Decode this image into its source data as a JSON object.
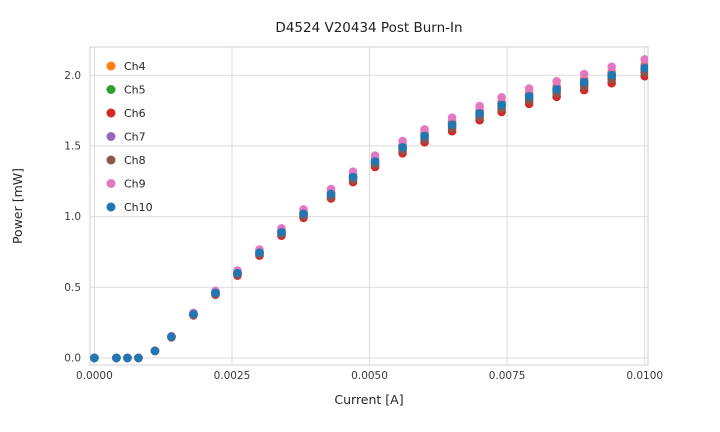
{
  "chart_data": {
    "type": "scatter",
    "title": "D4524 V20434 Post Burn-In",
    "xlabel": "Current [A]",
    "ylabel": "Power [mW]",
    "xlim": [
      -8e-05,
      0.01006
    ],
    "ylim": [
      -0.05,
      2.2
    ],
    "grid": true,
    "legend_position": "upper-left",
    "xticks": {
      "values": [
        0.0,
        0.0025,
        0.005,
        0.0075,
        0.01
      ],
      "labels": [
        "0.0000",
        "0.0025",
        "0.0050",
        "0.0075",
        "0.0100"
      ]
    },
    "yticks": {
      "values": [
        0.0,
        0.5,
        1.0,
        1.5,
        2.0
      ],
      "labels": [
        "0.0",
        "0.5",
        "1.0",
        "1.5",
        "2.0"
      ]
    },
    "x": [
      0.0,
      0.0004,
      0.0006,
      0.0008,
      0.0011,
      0.0014,
      0.0018,
      0.0022,
      0.0026,
      0.003,
      0.0034,
      0.0038,
      0.0043,
      0.0047,
      0.0051,
      0.0056,
      0.006,
      0.0065,
      0.007,
      0.0074,
      0.0079,
      0.0084,
      0.0089,
      0.0094,
      0.01
    ],
    "series": [
      {
        "name": "Ch4",
        "color": "#ff7f0e",
        "y": [
          0,
          0,
          0,
          0,
          0.051,
          0.152,
          0.314,
          0.466,
          0.607,
          0.754,
          0.901,
          1.032,
          1.174,
          1.295,
          1.407,
          1.508,
          1.589,
          1.67,
          1.751,
          1.811,
          1.872,
          1.923,
          1.973,
          2.024,
          2.075
        ]
      },
      {
        "name": "Ch5",
        "color": "#2ca02c",
        "y": [
          0,
          0,
          0,
          0,
          0.05,
          0.149,
          0.308,
          0.458,
          0.597,
          0.741,
          0.885,
          1.015,
          1.154,
          1.274,
          1.383,
          1.483,
          1.562,
          1.642,
          1.721,
          1.781,
          1.841,
          1.891,
          1.94,
          1.99,
          2.04
        ]
      },
      {
        "name": "Ch6",
        "color": "#d62728",
        "y": [
          0,
          0,
          0,
          0,
          0.049,
          0.146,
          0.301,
          0.447,
          0.583,
          0.724,
          0.865,
          0.991,
          1.128,
          1.244,
          1.351,
          1.448,
          1.526,
          1.604,
          1.682,
          1.74,
          1.798,
          1.847,
          1.895,
          1.944,
          1.993
        ]
      },
      {
        "name": "Ch7",
        "color": "#9467bd",
        "y": [
          0,
          0,
          0,
          0,
          0.05,
          0.151,
          0.312,
          0.462,
          0.603,
          0.749,
          0.894,
          1.025,
          1.166,
          1.286,
          1.397,
          1.497,
          1.578,
          1.658,
          1.739,
          1.799,
          1.859,
          1.91,
          1.96,
          2.01,
          2.06
        ]
      },
      {
        "name": "Ch8",
        "color": "#8c564b",
        "y": [
          0,
          0,
          0,
          0,
          0.049,
          0.148,
          0.305,
          0.453,
          0.591,
          0.734,
          0.877,
          1.005,
          1.143,
          1.261,
          1.369,
          1.468,
          1.546,
          1.625,
          1.704,
          1.763,
          1.822,
          1.872,
          1.921,
          1.97,
          2.019
        ]
      },
      {
        "name": "Ch9",
        "color": "#e377c2",
        "y": [
          0,
          0,
          0,
          0,
          0.052,
          0.155,
          0.319,
          0.474,
          0.618,
          0.767,
          0.917,
          1.051,
          1.195,
          1.318,
          1.432,
          1.535,
          1.617,
          1.7,
          1.782,
          1.844,
          1.906,
          1.957,
          2.009,
          2.06,
          2.112
        ]
      },
      {
        "name": "Ch10",
        "color": "#1f77b4",
        "y": [
          0,
          0,
          0,
          0,
          0.05,
          0.15,
          0.31,
          0.46,
          0.6,
          0.745,
          0.89,
          1.02,
          1.16,
          1.28,
          1.39,
          1.49,
          1.57,
          1.65,
          1.73,
          1.79,
          1.85,
          1.9,
          1.95,
          2.0,
          2.05
        ]
      }
    ]
  },
  "style": {
    "grid_color": "#dcdcdc",
    "spine_color": "#d0d0d0",
    "background": "#ffffff",
    "marker_radius": 4.3
  }
}
